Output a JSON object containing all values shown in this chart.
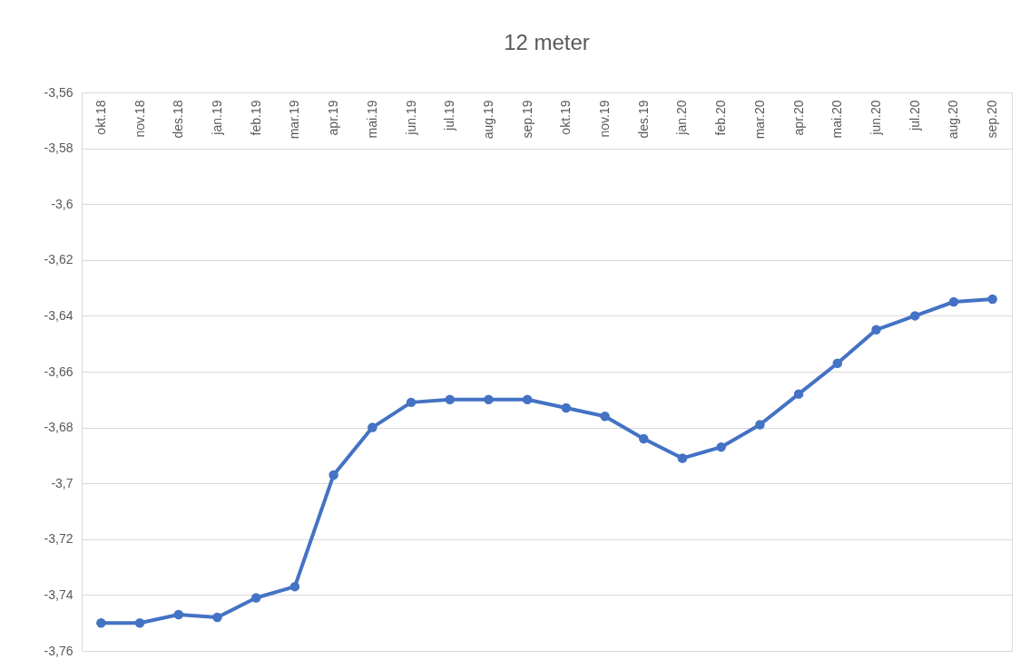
{
  "chart_data": {
    "type": "line",
    "title": "12 meter",
    "categories": [
      "okt.18",
      "nov.18",
      "des.18",
      "jan.19",
      "feb.19",
      "mar.19",
      "apr.19",
      "mai.19",
      "jun.19",
      "jul.19",
      "aug.19",
      "sep.19",
      "okt.19",
      "nov.19",
      "des.19",
      "jan.20",
      "feb.20",
      "mar.20",
      "apr.20",
      "mai.20",
      "jun.20",
      "jul.20",
      "aug.20",
      "sep.20"
    ],
    "series": [
      {
        "color": "#4472c4",
        "values": [
          -3.75,
          -3.75,
          -3.747,
          -3.748,
          -3.741,
          -3.737,
          -3.697,
          -3.68,
          -3.671,
          -3.67,
          -3.67,
          -3.67,
          -3.673,
          -3.676,
          -3.684,
          -3.691,
          -3.687,
          -3.679,
          -3.668,
          -3.657,
          -3.645,
          -3.64,
          -3.635,
          -3.634
        ]
      }
    ],
    "ylim": [
      -3.76,
      -3.56
    ],
    "yticks": [
      {
        "value": -3.76,
        "label": "-3,76"
      },
      {
        "value": -3.74,
        "label": "-3,74"
      },
      {
        "value": -3.72,
        "label": "-3,72"
      },
      {
        "value": -3.7,
        "label": "-3,7"
      },
      {
        "value": -3.68,
        "label": "-3,68"
      },
      {
        "value": -3.66,
        "label": "-3,66"
      },
      {
        "value": -3.64,
        "label": "-3,64"
      },
      {
        "value": -3.62,
        "label": "-3,62"
      },
      {
        "value": -3.6,
        "label": "-3,6"
      },
      {
        "value": -3.58,
        "label": "-3,58"
      },
      {
        "value": -3.56,
        "label": "-3,56"
      }
    ],
    "grid": "y",
    "marker": "circle",
    "line_style": "solid"
  }
}
